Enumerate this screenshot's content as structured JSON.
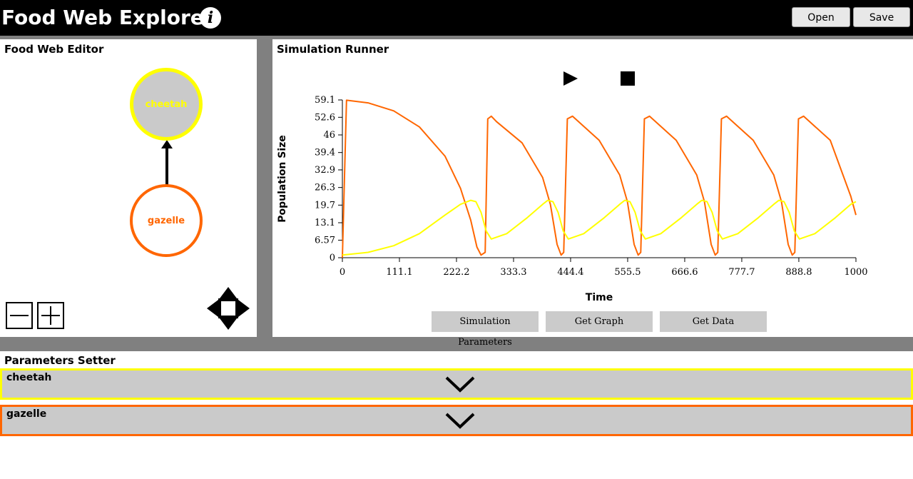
{
  "header": {
    "title": "Food Web Explorer",
    "info_glyph": "i",
    "open_label": "Open",
    "save_label": "Save"
  },
  "editor": {
    "title": "Food Web Editor",
    "nodes": [
      {
        "name": "cheetah",
        "color": "#ffff00"
      },
      {
        "name": "gazelle",
        "color": "#ff6600"
      }
    ],
    "zoom_out_icon": "minus-icon",
    "zoom_in_icon": "plus-icon",
    "pan_icon": "pan-arrows-icon"
  },
  "runner": {
    "title": "Simulation Runner",
    "play_icon": "play-icon",
    "stop_icon": "stop-icon",
    "buttons": {
      "sim_params": "Simulation Parameters",
      "get_graph": "Get Graph",
      "get_data": "Get Data"
    }
  },
  "chart_data": {
    "type": "line",
    "xlabel": "Time",
    "ylabel": "Population Size",
    "xlim": [
      0,
      1000
    ],
    "ylim": [
      0,
      59.1
    ],
    "x_ticks": [
      "0",
      "111.1",
      "222.2",
      "333.3",
      "444.4",
      "555.5",
      "666.6",
      "777.7",
      "888.8",
      "1000"
    ],
    "y_ticks": [
      "0",
      "6.57",
      "13.1",
      "19.7",
      "26.3",
      "32.9",
      "39.4",
      "46",
      "52.6",
      "59.1"
    ],
    "series": [
      {
        "color": "#ff6600",
        "x": [
          0,
          8,
          50,
          100,
          150,
          200,
          230,
          250,
          262,
          270,
          278,
          283,
          290,
          300,
          350,
          390,
          405,
          418,
          426,
          431,
          438,
          448,
          500,
          540,
          555,
          568,
          576,
          581,
          588,
          598,
          650,
          690,
          705,
          718,
          726,
          731,
          738,
          748,
          800,
          840,
          855,
          868,
          876,
          881,
          888,
          898,
          950,
          990,
          1000
        ],
        "y": [
          0,
          59,
          58,
          55,
          49,
          38,
          26,
          14,
          4,
          1,
          2,
          52,
          53,
          51,
          43,
          30,
          20,
          5,
          1,
          2,
          52,
          53,
          44,
          31,
          21,
          5,
          1,
          2,
          52,
          53,
          44,
          31,
          21,
          5,
          1,
          2,
          52,
          53,
          44,
          31,
          21,
          5,
          1,
          2,
          52,
          53,
          44,
          23,
          16
        ]
      },
      {
        "color": "#ffff00",
        "x": [
          0,
          50,
          100,
          150,
          200,
          230,
          250,
          260,
          270,
          280,
          290,
          320,
          360,
          390,
          400,
          410,
          420,
          430,
          440,
          470,
          510,
          540,
          550,
          560,
          570,
          580,
          590,
          620,
          660,
          690,
          700,
          710,
          720,
          730,
          740,
          770,
          810,
          840,
          850,
          860,
          870,
          880,
          890,
          920,
          960,
          990,
          1000
        ],
        "y": [
          1,
          2,
          4.5,
          9,
          16,
          20,
          21.5,
          21,
          17,
          10,
          7,
          9,
          15,
          20,
          21.5,
          21,
          17,
          10,
          7,
          9,
          15,
          20,
          21.5,
          21,
          17,
          10,
          7,
          9,
          15,
          20,
          21.5,
          21,
          17,
          10,
          7,
          9,
          15,
          20,
          21.5,
          21,
          17,
          10,
          7,
          9,
          15,
          20,
          21
        ]
      }
    ]
  },
  "params": {
    "title": "Parameters Setter",
    "rows": [
      {
        "name": "cheetah",
        "color": "#ffff00"
      },
      {
        "name": "gazelle",
        "color": "#ff6600"
      }
    ],
    "expand_icon": "chevron-down-icon"
  }
}
